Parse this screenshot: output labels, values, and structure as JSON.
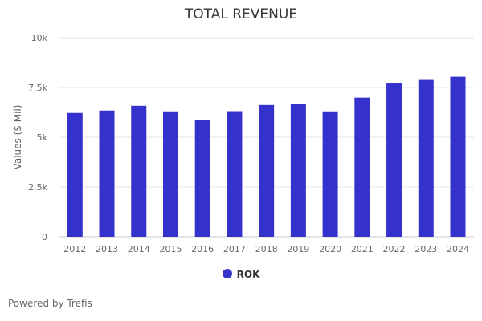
{
  "chart_data": {
    "type": "bar",
    "title": "TOTAL REVENUE",
    "ylabel": "Values ($ Mil)",
    "xlabel": "",
    "categories": [
      "2012",
      "2013",
      "2014",
      "2015",
      "2016",
      "2017",
      "2018",
      "2019",
      "2020",
      "2021",
      "2022",
      "2023",
      "2024"
    ],
    "series": [
      {
        "name": "ROK",
        "values": [
          6220,
          6340,
          6580,
          6300,
          5860,
          6310,
          6620,
          6660,
          6300,
          6990,
          7710,
          7880,
          8040
        ],
        "color": "#3431cc"
      }
    ],
    "ylim": [
      0,
      10000
    ],
    "yticks": [
      0,
      2500,
      5000,
      7500,
      10000
    ],
    "ytick_labels": [
      "0",
      "2.5k",
      "5k",
      "7.5k",
      "10k"
    ],
    "grid": true,
    "legend": "bottom-center"
  },
  "footer": {
    "credit": "Powered by Trefis"
  }
}
